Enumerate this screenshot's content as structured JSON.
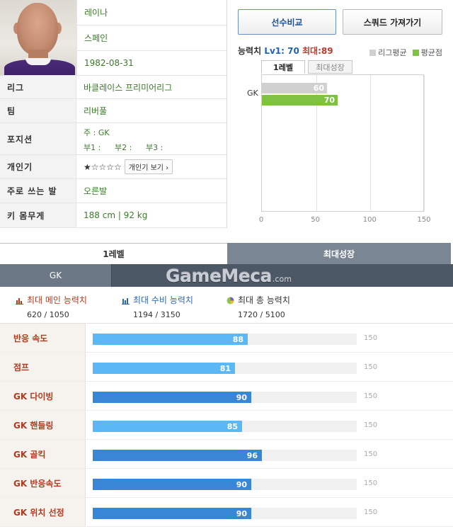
{
  "profile": {
    "name": "레이나",
    "nation": "스페인",
    "birth": "1982-08-31",
    "rows": [
      {
        "label": "리그",
        "value": "바클레이스 프리미어리그"
      },
      {
        "label": "팀",
        "value": "리버풀"
      },
      {
        "label": "포지션"
      },
      {
        "label": "개인기"
      },
      {
        "label": "주로 쓰는 발",
        "value": "오른발"
      },
      {
        "label": "키 몸무게",
        "value": "188 cm | 92 kg"
      }
    ],
    "position_main": "주 : GK",
    "position_sub": [
      "부1 :",
      "부2 :",
      "부3 :"
    ],
    "skill_stars": "★☆☆☆☆",
    "skill_button": "개인기 보기 ›"
  },
  "compare": {
    "compare_button": "선수비교",
    "squad_button": "스쿼드 가져가기",
    "title_prefix": "능력치",
    "title_level": "Lv1: 70",
    "title_max": "최대:89",
    "legend": [
      {
        "label": "리그평균",
        "color": "#d0d0d0"
      },
      {
        "label": "평균점",
        "color": "#7fc241"
      }
    ],
    "tabs": [
      "1레벨",
      "최대성장"
    ]
  },
  "chart_data": {
    "type": "bar",
    "orientation": "horizontal",
    "categories": [
      "GK"
    ],
    "series": [
      {
        "name": "리그평균",
        "values": [
          60
        ],
        "color": "#d0d0d0"
      },
      {
        "name": "평균점",
        "values": [
          70
        ],
        "color": "#7fc241"
      }
    ],
    "xlim": [
      0,
      150
    ],
    "xticks": [
      0,
      50,
      100,
      150
    ],
    "grid": true
  },
  "main_tabs": [
    "1레벨",
    "최대성장"
  ],
  "position_tab": "GK",
  "logo": {
    "main": "GameMeca",
    "suffix": ".com"
  },
  "totals": [
    {
      "label": "최대 메인 능력치",
      "value": "620 / 1050",
      "color": "#b23a1e",
      "icon": "bar-chart-icon"
    },
    {
      "label": "최대 수비 능력치",
      "value": "1194 / 3150",
      "color": "#2f66b3",
      "icon": "bar-chart-icon"
    },
    {
      "label": "최대 총 능력치",
      "value": "1720 / 5100",
      "color": "#333333",
      "icon": "pie-chart-icon"
    }
  ],
  "stats": [
    {
      "label": "반응 속도",
      "value": 88,
      "max": "150",
      "color": "#5bb8f5"
    },
    {
      "label": "점프",
      "value": 81,
      "max": "150",
      "color": "#5bb8f5"
    },
    {
      "label": "GK 다이빙",
      "value": 90,
      "max": "150",
      "color": "#3a86d6"
    },
    {
      "label": "GK 핸들링",
      "value": 85,
      "max": "150",
      "color": "#5bb8f5"
    },
    {
      "label": "GK 골킥",
      "value": 96,
      "max": "150",
      "color": "#3a86d6"
    },
    {
      "label": "GK 반응속도",
      "value": 90,
      "max": "150",
      "color": "#3a86d6"
    },
    {
      "label": "GK 위치 선정",
      "value": 90,
      "max": "150",
      "color": "#3a86d6"
    }
  ]
}
